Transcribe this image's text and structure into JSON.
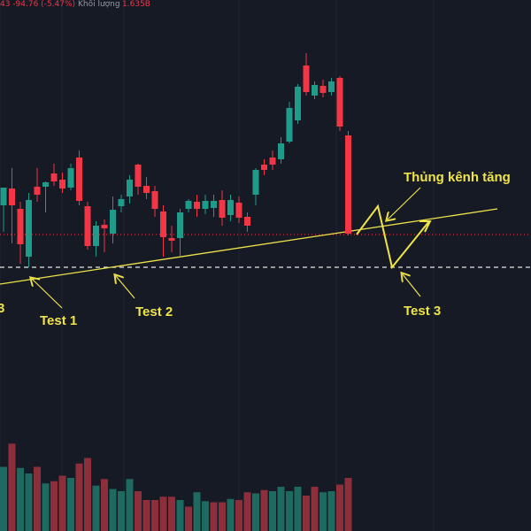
{
  "header": {
    "price_change": "43  -94.76 (-5.47%)",
    "volume_label": "Khối lượng",
    "volume_value": "1.635B"
  },
  "colors": {
    "background": "#161a25",
    "bull": "#1f9b8a",
    "bear": "#f23645",
    "bull_volume": "#1d6b60",
    "bear_volume": "#8c2f3a",
    "annotation": "#f0e34a",
    "grid": "#1f2431",
    "support_dashed": "#e8e8e8",
    "price_dotted": "#f23645"
  },
  "annotations": {
    "breakout_label": "Thủng kênh tăng",
    "test1_label": "Test 1",
    "test2_label": "Test 2",
    "test3_label": "Test 3",
    "cut_off_label": "3"
  },
  "chart_data": {
    "type": "candlestick",
    "ohlc_candles": [
      {
        "o": 232,
        "h": 218,
        "l": 262,
        "c": 212,
        "dir": "up"
      },
      {
        "o": 213,
        "h": 190,
        "l": 275,
        "c": 232,
        "dir": "down"
      },
      {
        "o": 236,
        "h": 228,
        "l": 298,
        "c": 276,
        "dir": "down"
      },
      {
        "o": 290,
        "h": 218,
        "l": 302,
        "c": 226,
        "dir": "up"
      },
      {
        "o": 220,
        "h": 190,
        "l": 228,
        "c": 211,
        "dir": "down"
      },
      {
        "o": 211,
        "h": 205,
        "l": 240,
        "c": 206,
        "dir": "up"
      },
      {
        "o": 196,
        "h": 185,
        "l": 210,
        "c": 205,
        "dir": "down"
      },
      {
        "o": 203,
        "h": 195,
        "l": 218,
        "c": 213,
        "dir": "down"
      },
      {
        "o": 212,
        "h": 185,
        "l": 215,
        "c": 190,
        "dir": "up"
      },
      {
        "o": 178,
        "h": 170,
        "l": 232,
        "c": 227,
        "dir": "down"
      },
      {
        "o": 233,
        "h": 228,
        "l": 282,
        "c": 278,
        "dir": "down"
      },
      {
        "o": 278,
        "h": 250,
        "l": 290,
        "c": 255,
        "dir": "up"
      },
      {
        "o": 254,
        "h": 248,
        "l": 285,
        "c": 258,
        "dir": "down"
      },
      {
        "o": 264,
        "h": 222,
        "l": 275,
        "c": 237,
        "dir": "up"
      },
      {
        "o": 233,
        "h": 220,
        "l": 240,
        "c": 225,
        "dir": "up"
      },
      {
        "o": 222,
        "h": 198,
        "l": 230,
        "c": 203,
        "dir": "up"
      },
      {
        "o": 186,
        "h": 185,
        "l": 220,
        "c": 211,
        "dir": "down"
      },
      {
        "o": 210,
        "h": 200,
        "l": 225,
        "c": 218,
        "dir": "down"
      },
      {
        "o": 216,
        "h": 210,
        "l": 245,
        "c": 236,
        "dir": "down"
      },
      {
        "o": 239,
        "h": 232,
        "l": 290,
        "c": 268,
        "dir": "down"
      },
      {
        "o": 269,
        "h": 255,
        "l": 285,
        "c": 272,
        "dir": "down"
      },
      {
        "o": 269,
        "h": 236,
        "l": 290,
        "c": 240,
        "dir": "up"
      },
      {
        "o": 236,
        "h": 225,
        "l": 240,
        "c": 227,
        "dir": "up"
      },
      {
        "o": 228,
        "h": 220,
        "l": 245,
        "c": 236,
        "dir": "down"
      },
      {
        "o": 236,
        "h": 220,
        "l": 242,
        "c": 227,
        "dir": "up"
      },
      {
        "o": 227,
        "h": 220,
        "l": 245,
        "c": 235,
        "dir": "up"
      },
      {
        "o": 226,
        "h": 215,
        "l": 255,
        "c": 246,
        "dir": "down"
      },
      {
        "o": 243,
        "h": 220,
        "l": 250,
        "c": 226,
        "dir": "up"
      },
      {
        "o": 229,
        "h": 222,
        "l": 252,
        "c": 246,
        "dir": "down"
      },
      {
        "o": 245,
        "h": 240,
        "l": 262,
        "c": 255,
        "dir": "down"
      },
      {
        "o": 220,
        "h": 190,
        "l": 232,
        "c": 192,
        "dir": "up"
      },
      {
        "o": 192,
        "h": 180,
        "l": 198,
        "c": 186,
        "dir": "down"
      },
      {
        "o": 186,
        "h": 170,
        "l": 192,
        "c": 178,
        "dir": "down"
      },
      {
        "o": 180,
        "h": 155,
        "l": 185,
        "c": 162,
        "dir": "up"
      },
      {
        "o": 160,
        "h": 115,
        "l": 162,
        "c": 122,
        "dir": "up"
      },
      {
        "o": 136,
        "h": 95,
        "l": 140,
        "c": 98,
        "dir": "up"
      },
      {
        "o": 74,
        "h": 60,
        "l": 108,
        "c": 104,
        "dir": "down"
      },
      {
        "o": 108,
        "h": 92,
        "l": 112,
        "c": 96,
        "dir": "up"
      },
      {
        "o": 97,
        "h": 90,
        "l": 110,
        "c": 105,
        "dir": "down"
      },
      {
        "o": 104,
        "h": 88,
        "l": 108,
        "c": 92,
        "dir": "up"
      },
      {
        "o": 88,
        "h": 86,
        "l": 148,
        "c": 143,
        "dir": "down"
      },
      {
        "o": 153,
        "h": 148,
        "l": 266,
        "c": 264,
        "dir": "down"
      }
    ],
    "volume": [
      {
        "v": 0.58,
        "dir": "up"
      },
      {
        "v": 0.79,
        "dir": "down"
      },
      {
        "v": 0.57,
        "dir": "up"
      },
      {
        "v": 0.52,
        "dir": "up"
      },
      {
        "v": 0.58,
        "dir": "down"
      },
      {
        "v": 0.43,
        "dir": "up"
      },
      {
        "v": 0.45,
        "dir": "down"
      },
      {
        "v": 0.5,
        "dir": "down"
      },
      {
        "v": 0.48,
        "dir": "up"
      },
      {
        "v": 0.61,
        "dir": "down"
      },
      {
        "v": 0.66,
        "dir": "down"
      },
      {
        "v": 0.41,
        "dir": "up"
      },
      {
        "v": 0.47,
        "dir": "down"
      },
      {
        "v": 0.38,
        "dir": "up"
      },
      {
        "v": 0.36,
        "dir": "up"
      },
      {
        "v": 0.47,
        "dir": "up"
      },
      {
        "v": 0.36,
        "dir": "down"
      },
      {
        "v": 0.28,
        "dir": "down"
      },
      {
        "v": 0.28,
        "dir": "down"
      },
      {
        "v": 0.31,
        "dir": "down"
      },
      {
        "v": 0.31,
        "dir": "down"
      },
      {
        "v": 0.28,
        "dir": "up"
      },
      {
        "v": 0.22,
        "dir": "down"
      },
      {
        "v": 0.35,
        "dir": "up"
      },
      {
        "v": 0.27,
        "dir": "up"
      },
      {
        "v": 0.26,
        "dir": "down"
      },
      {
        "v": 0.26,
        "dir": "down"
      },
      {
        "v": 0.29,
        "dir": "up"
      },
      {
        "v": 0.28,
        "dir": "down"
      },
      {
        "v": 0.35,
        "dir": "down"
      },
      {
        "v": 0.34,
        "dir": "up"
      },
      {
        "v": 0.37,
        "dir": "down"
      },
      {
        "v": 0.36,
        "dir": "up"
      },
      {
        "v": 0.4,
        "dir": "up"
      },
      {
        "v": 0.36,
        "dir": "up"
      },
      {
        "v": 0.4,
        "dir": "up"
      },
      {
        "v": 0.32,
        "dir": "down"
      },
      {
        "v": 0.4,
        "dir": "down"
      },
      {
        "v": 0.35,
        "dir": "up"
      },
      {
        "v": 0.36,
        "dir": "up"
      },
      {
        "v": 0.42,
        "dir": "down"
      },
      {
        "v": 0.48,
        "dir": "down"
      }
    ]
  }
}
